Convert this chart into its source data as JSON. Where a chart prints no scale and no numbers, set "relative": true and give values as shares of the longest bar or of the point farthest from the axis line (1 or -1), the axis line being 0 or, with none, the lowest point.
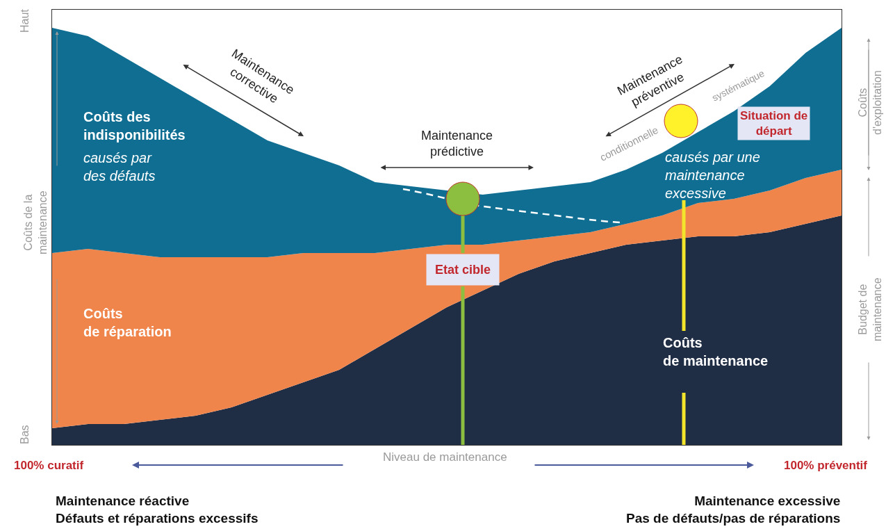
{
  "chart_data": {
    "type": "area",
    "stacked": true,
    "relative": true,
    "categories": [
      null,
      null,
      null,
      null,
      null,
      null,
      null,
      null,
      null,
      null,
      null,
      null,
      null,
      null,
      null,
      null,
      null,
      null,
      null,
      null,
      null,
      null,
      null
    ],
    "xlabel": "Niveau de maintenance",
    "ylabel": "Coûts de la\nmaintenance",
    "series": [
      {
        "name": "Coûts\nde maintenance",
        "color": "#1f2d45",
        "values": [
          0.04,
          0.05,
          0.05,
          0.06,
          0.07,
          0.09,
          0.12,
          0.15,
          0.18,
          0.23,
          0.28,
          0.33,
          0.37,
          0.41,
          0.44,
          0.46,
          0.48,
          0.49,
          0.5,
          0.5,
          0.51,
          0.53,
          0.55
        ]
      },
      {
        "name": "Coûts\nde réparation",
        "color": "#f0854b",
        "values": [
          0.42,
          0.42,
          0.41,
          0.39,
          0.38,
          0.36,
          0.33,
          0.31,
          0.28,
          0.23,
          0.19,
          0.15,
          0.11,
          0.08,
          0.06,
          0.05,
          0.05,
          0.06,
          0.08,
          0.09,
          0.1,
          0.11,
          0.11
        ]
      },
      {
        "name": "Coûts des\nindisponibilités",
        "color": "#0f6e92",
        "values": [
          0.54,
          0.51,
          0.47,
          0.43,
          0.38,
          0.33,
          0.28,
          0.24,
          0.21,
          0.17,
          0.15,
          0.13,
          0.12,
          0.12,
          0.12,
          0.12,
          0.13,
          0.15,
          0.17,
          0.21,
          0.25,
          0.3,
          0.34
        ]
      }
    ],
    "annotations": [
      "causés par\ndes défauts",
      "causés par une\nmaintenance\nexcessive",
      "Maintenance\ncorrective",
      "Maintenance\nprédictive",
      "Maintenance\npréventive",
      "conditionnelle",
      "systématique",
      "Haut",
      "Bas",
      "Coûts\nd'exploitation",
      "Budget de\nmaintenance",
      "Maintenance réactive\nDéfauts et réparations excessifs",
      "Maintenance excessive\nPas de défauts/pas de réparations",
      "100% curatif",
      "100% préventif",
      "Etat cible",
      "Situation de\ndépart"
    ]
  }
}
